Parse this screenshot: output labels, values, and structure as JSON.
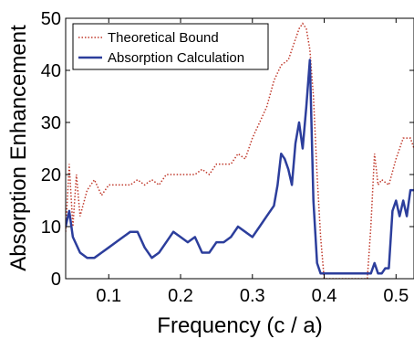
{
  "chart_data": {
    "type": "line",
    "xlabel": "Frequency (c / a)",
    "ylabel": "Absorption Enhancement",
    "xlim": [
      0.04,
      0.525
    ],
    "ylim": [
      0,
      50
    ],
    "xticks": [
      0.1,
      0.2,
      0.3,
      0.4,
      0.5
    ],
    "xtick_labels": [
      "0.1",
      "0.2",
      "0.3",
      "0.4",
      "0.5"
    ],
    "yticks": [
      0,
      10,
      20,
      30,
      40,
      50
    ],
    "ytick_labels": [
      "0",
      "10",
      "20",
      "30",
      "40",
      "50"
    ],
    "grid": false,
    "legend_position": "top-left",
    "series": [
      {
        "name": "Theoretical Bound",
        "color": "#c0392b",
        "style": "dotted",
        "x": [
          0.04,
          0.045,
          0.05,
          0.055,
          0.06,
          0.07,
          0.08,
          0.09,
          0.1,
          0.11,
          0.12,
          0.13,
          0.14,
          0.15,
          0.16,
          0.17,
          0.18,
          0.19,
          0.2,
          0.21,
          0.22,
          0.23,
          0.24,
          0.25,
          0.26,
          0.27,
          0.28,
          0.29,
          0.3,
          0.31,
          0.32,
          0.33,
          0.34,
          0.35,
          0.355,
          0.36,
          0.365,
          0.37,
          0.375,
          0.38,
          0.385,
          0.39,
          0.395,
          0.4,
          0.41,
          0.42,
          0.43,
          0.44,
          0.45,
          0.46,
          0.465,
          0.47,
          0.475,
          0.48,
          0.49,
          0.5,
          0.51,
          0.52,
          0.525
        ],
        "y": [
          9,
          22,
          10,
          20,
          12,
          17,
          19,
          16,
          18,
          18,
          18,
          18,
          19,
          18,
          19,
          18,
          20,
          20,
          20,
          20,
          20,
          21,
          20,
          22,
          22,
          22,
          24,
          23,
          27,
          30,
          33,
          38,
          41,
          42,
          44,
          46,
          48,
          49,
          48,
          44,
          35,
          20,
          8,
          0,
          0,
          0,
          0,
          0,
          0,
          0,
          10,
          24,
          18,
          19,
          18,
          23,
          27,
          27,
          25
        ]
      },
      {
        "name": "Absorption Calculation",
        "color": "#2c3e9c",
        "style": "solid",
        "x": [
          0.04,
          0.045,
          0.05,
          0.06,
          0.07,
          0.08,
          0.09,
          0.1,
          0.11,
          0.12,
          0.13,
          0.14,
          0.15,
          0.16,
          0.17,
          0.18,
          0.19,
          0.2,
          0.21,
          0.22,
          0.23,
          0.24,
          0.25,
          0.26,
          0.27,
          0.28,
          0.29,
          0.3,
          0.31,
          0.32,
          0.33,
          0.335,
          0.34,
          0.345,
          0.35,
          0.355,
          0.36,
          0.365,
          0.37,
          0.375,
          0.38,
          0.385,
          0.39,
          0.395,
          0.4,
          0.41,
          0.42,
          0.43,
          0.44,
          0.45,
          0.46,
          0.465,
          0.47,
          0.475,
          0.48,
          0.485,
          0.49,
          0.495,
          0.5,
          0.505,
          0.51,
          0.515,
          0.52,
          0.525
        ],
        "y": [
          10,
          13,
          8,
          5,
          4,
          4,
          5,
          6,
          7,
          8,
          9,
          9,
          6,
          4,
          5,
          7,
          9,
          8,
          7,
          8,
          5,
          5,
          7,
          7,
          8,
          10,
          9,
          8,
          10,
          12,
          14,
          18,
          24,
          23,
          21,
          18,
          26,
          30,
          25,
          33,
          42,
          15,
          3,
          1,
          1,
          1,
          1,
          1,
          1,
          1,
          1,
          1,
          3,
          1,
          1,
          2,
          2,
          13,
          15,
          12,
          15,
          12,
          17,
          17
        ]
      }
    ]
  }
}
